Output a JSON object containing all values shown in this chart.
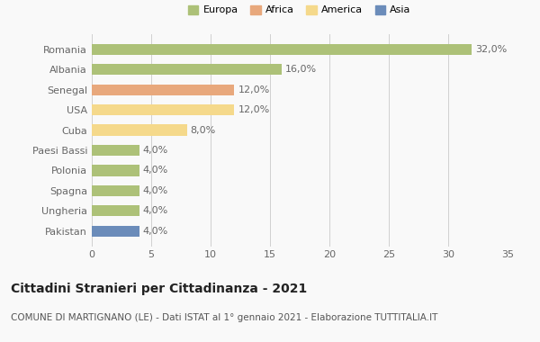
{
  "countries": [
    "Romania",
    "Albania",
    "Senegal",
    "USA",
    "Cuba",
    "Paesi Bassi",
    "Polonia",
    "Spagna",
    "Ungheria",
    "Pakistan"
  ],
  "values": [
    32.0,
    16.0,
    12.0,
    12.0,
    8.0,
    4.0,
    4.0,
    4.0,
    4.0,
    4.0
  ],
  "labels": [
    "32,0%",
    "16,0%",
    "12,0%",
    "12,0%",
    "8,0%",
    "4,0%",
    "4,0%",
    "4,0%",
    "4,0%",
    "4,0%"
  ],
  "colors": [
    "#adc178",
    "#adc178",
    "#e8a87c",
    "#f5d98b",
    "#f5d98b",
    "#adc178",
    "#adc178",
    "#adc178",
    "#adc178",
    "#6b8cba"
  ],
  "legend_labels": [
    "Europa",
    "Africa",
    "America",
    "Asia"
  ],
  "legend_colors": [
    "#adc178",
    "#e8a87c",
    "#f5d98b",
    "#6b8cba"
  ],
  "title": "Cittadini Stranieri per Cittadinanza - 2021",
  "subtitle": "COMUNE DI MARTIGNANO (LE) - Dati ISTAT al 1° gennaio 2021 - Elaborazione TUTTITALIA.IT",
  "xlim": [
    0,
    35
  ],
  "xticks": [
    0,
    5,
    10,
    15,
    20,
    25,
    30,
    35
  ],
  "bg_color": "#f9f9f9",
  "grid_color": "#d0d0d0",
  "bar_height": 0.55,
  "title_fontsize": 10,
  "subtitle_fontsize": 7.5,
  "tick_fontsize": 8,
  "label_fontsize": 8
}
